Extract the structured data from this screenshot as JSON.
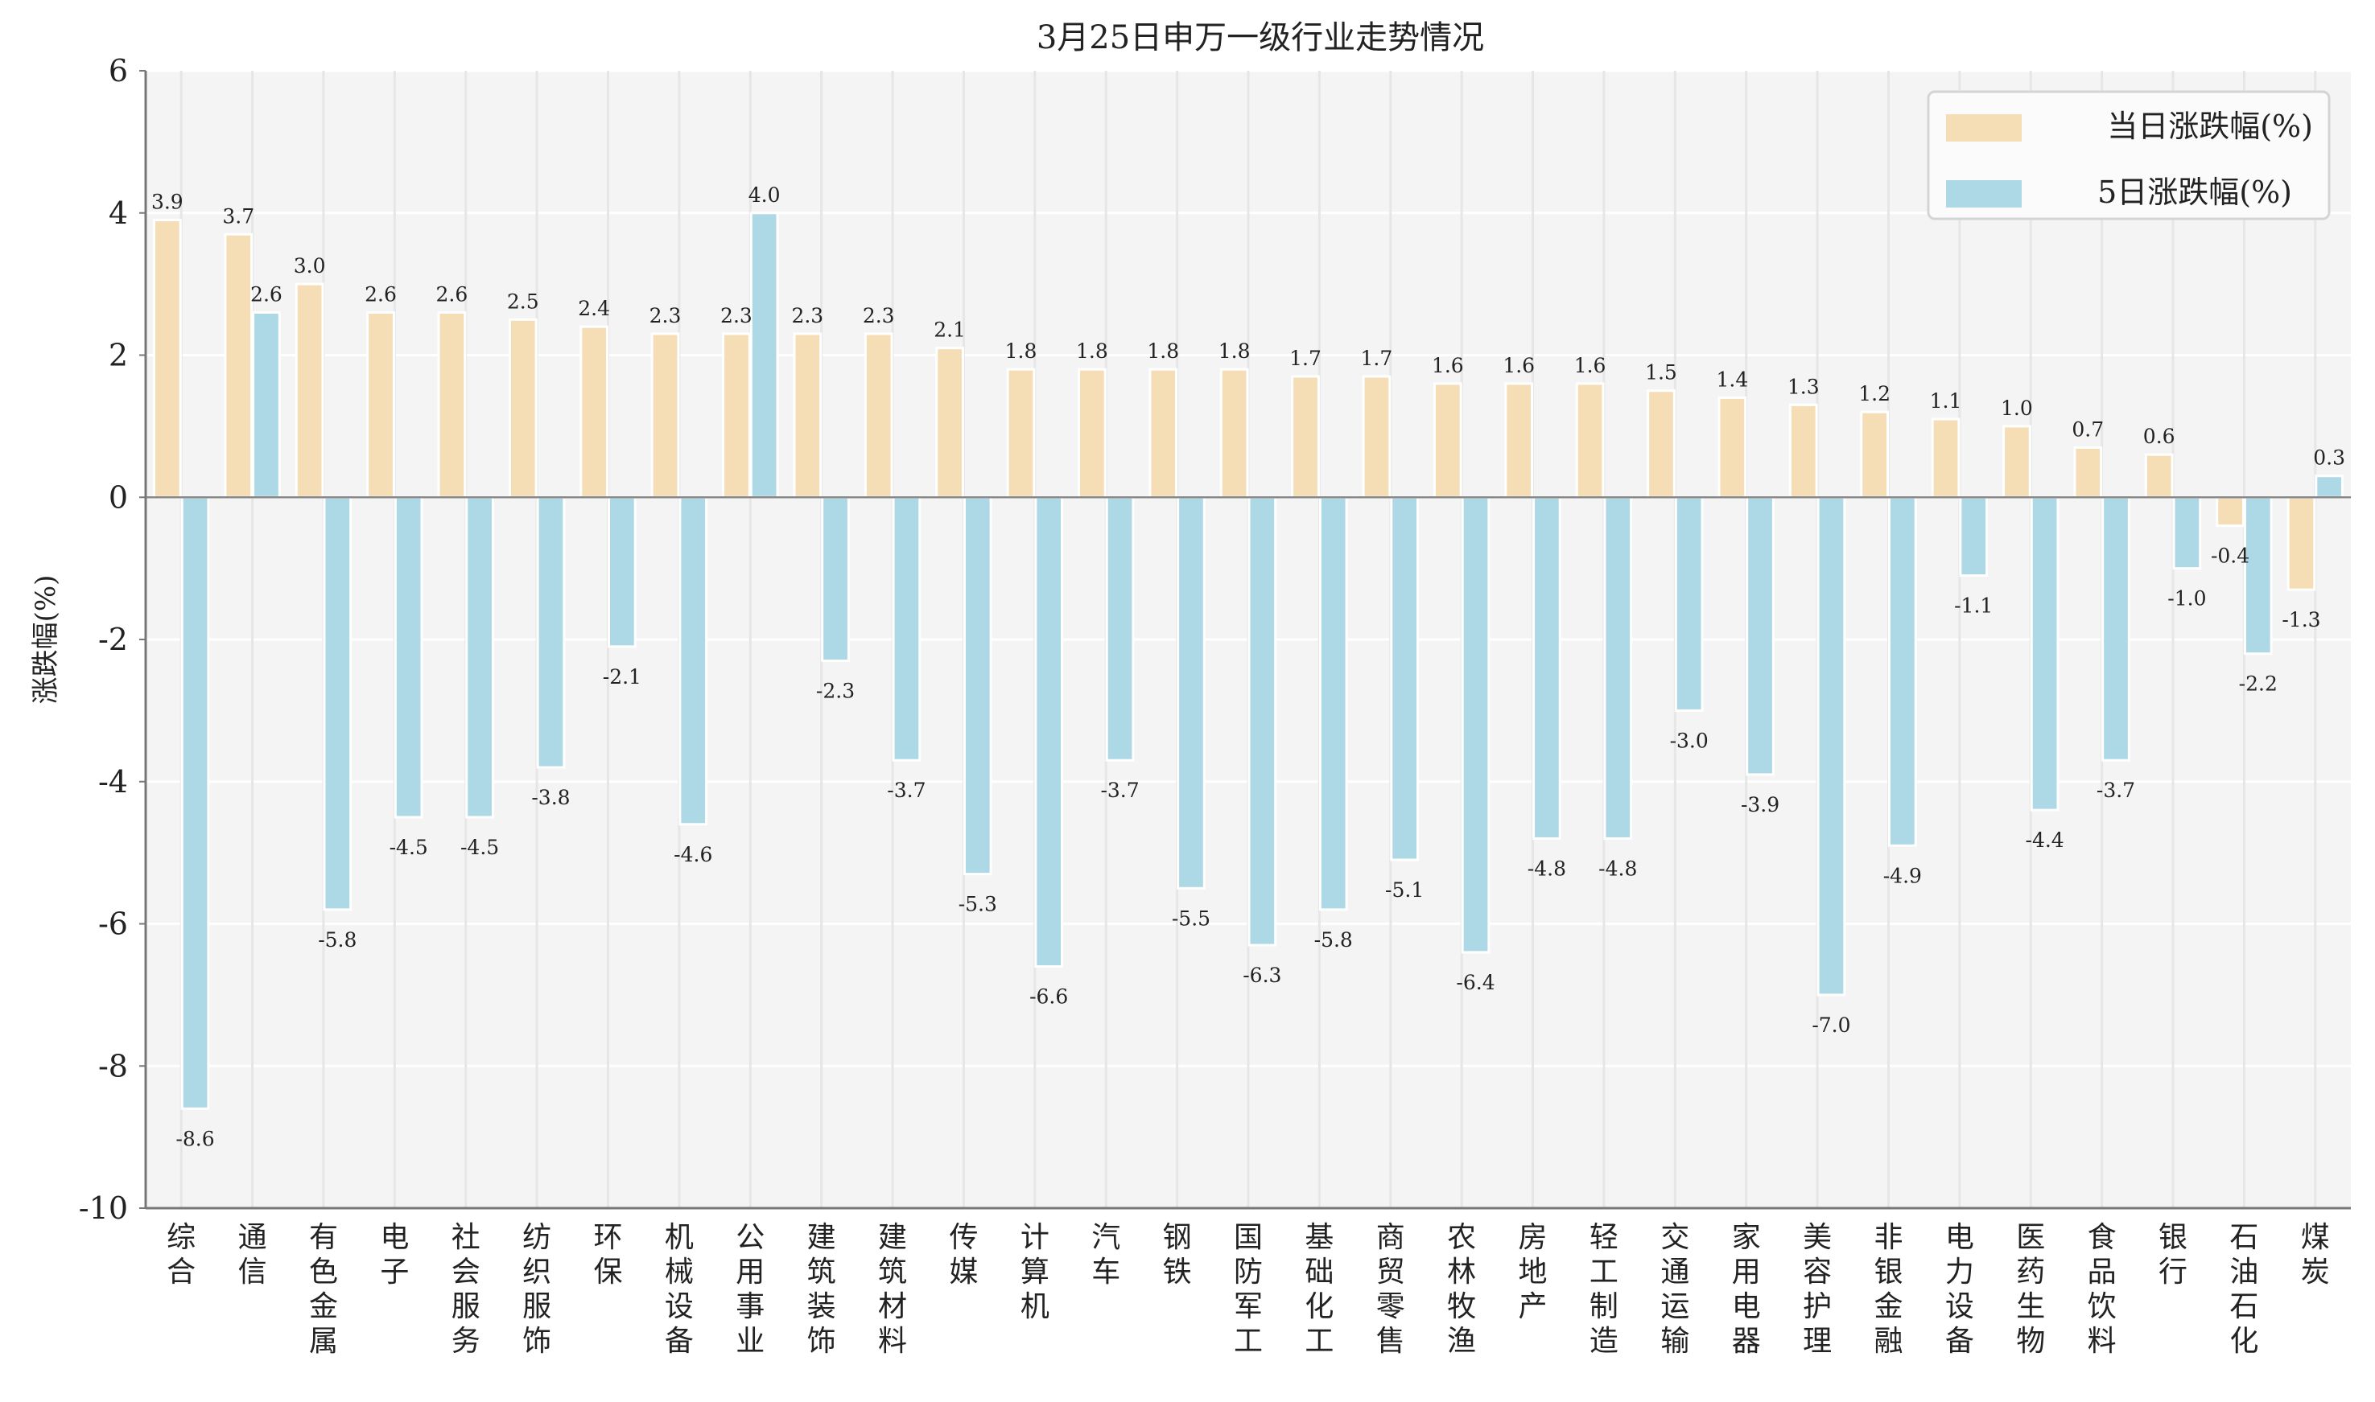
{
  "chart_data": {
    "type": "bar",
    "title": "3月25日申万一级行业走势情况",
    "xlabel": "",
    "ylabel": "涨跌幅(%)",
    "ylim": [
      -10,
      6
    ],
    "yticks": [
      6,
      4,
      2,
      0,
      -2,
      -4,
      -6,
      -8,
      -10
    ],
    "grid": true,
    "legend_position": "top-right",
    "categories": [
      "综合",
      "通信",
      "有色金属",
      "电子",
      "社会服务",
      "纺织服饰",
      "环保",
      "机械设备",
      "公用事业",
      "建筑装饰",
      "建筑材料",
      "传媒",
      "计算机",
      "汽车",
      "钢铁",
      "国防军工",
      "基础化工",
      "商贸零售",
      "农林牧渔",
      "房地产",
      "轻工制造",
      "交通运输",
      "家用电器",
      "美容护理",
      "非银金融",
      "电力设备",
      "医药生物",
      "食品饮料",
      "银行",
      "石油石化",
      "煤炭"
    ],
    "series": [
      {
        "name": "当日涨跌幅(%)",
        "color": "#f5ddb5",
        "values": [
          3.9,
          3.7,
          3.0,
          2.6,
          2.6,
          2.5,
          2.4,
          2.3,
          2.3,
          2.3,
          2.3,
          2.1,
          1.8,
          1.8,
          1.8,
          1.8,
          1.7,
          1.7,
          1.6,
          1.6,
          1.6,
          1.5,
          1.4,
          1.3,
          1.2,
          1.1,
          1.0,
          0.7,
          0.6,
          -0.4,
          -1.3
        ]
      },
      {
        "name": "5日涨跌幅(%)",
        "color": "#add8e6",
        "values": [
          -8.6,
          2.6,
          -5.8,
          -4.5,
          -4.5,
          -3.8,
          -2.1,
          -4.6,
          4.0,
          -2.3,
          -3.7,
          -5.3,
          -6.6,
          -3.7,
          -5.5,
          -6.3,
          -5.8,
          -5.1,
          -6.4,
          -4.8,
          -4.8,
          -3.0,
          -3.9,
          -7.0,
          -4.9,
          -1.1,
          -4.4,
          -3.7,
          -1.0,
          -2.2,
          0.3
        ]
      }
    ]
  }
}
